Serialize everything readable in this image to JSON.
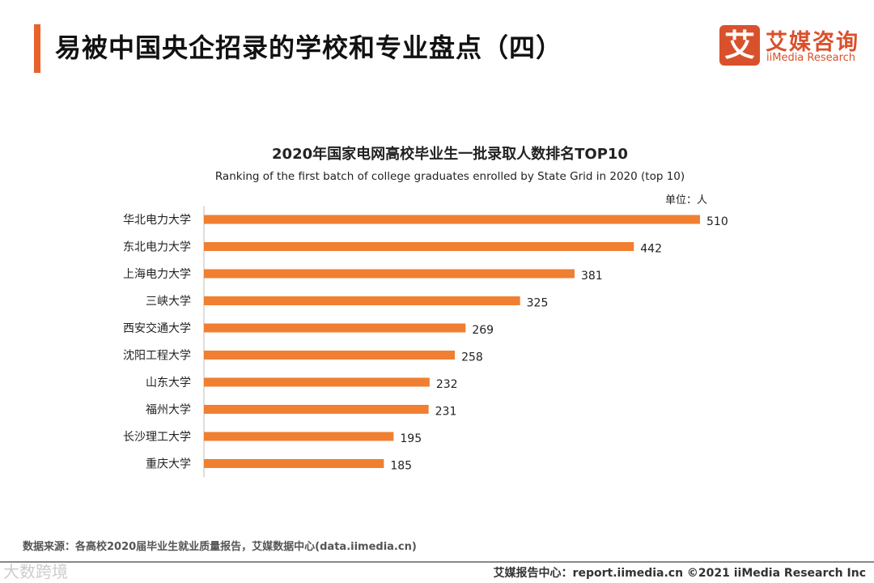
{
  "header": {
    "title": "易被中国央企招录的学校和专业盘点（四）",
    "logo_mark": "艾",
    "logo_cn": "艾媒咨询",
    "logo_en": "iiMedia Research"
  },
  "chart_data": {
    "type": "bar",
    "orientation": "horizontal",
    "title": "2020年国家电网高校毕业生一批录取人数排名TOP10",
    "subtitle": "Ranking of the first batch of college graduates enrolled by State Grid in 2020  (top 10)",
    "unit": "单位：人",
    "categories": [
      "华北电力大学",
      "东北电力大学",
      "上海电力大学",
      "三峡大学",
      "西安交通大学",
      "沈阳工程大学",
      "山东大学",
      "福州大学",
      "长沙理工大学",
      "重庆大学"
    ],
    "values": [
      510,
      442,
      381,
      325,
      269,
      258,
      232,
      231,
      195,
      185
    ],
    "xlim": [
      0,
      510
    ],
    "bar_color": "#f07f32"
  },
  "footer": {
    "source": "数据来源：各高校2020届毕业生就业质量报告，艾媒数据中心(data.iimedia.cn)",
    "site": "艾媒报告中心：report.iimedia.cn   ©2021  iiMedia Research  Inc",
    "watermark": "大数跨境"
  }
}
